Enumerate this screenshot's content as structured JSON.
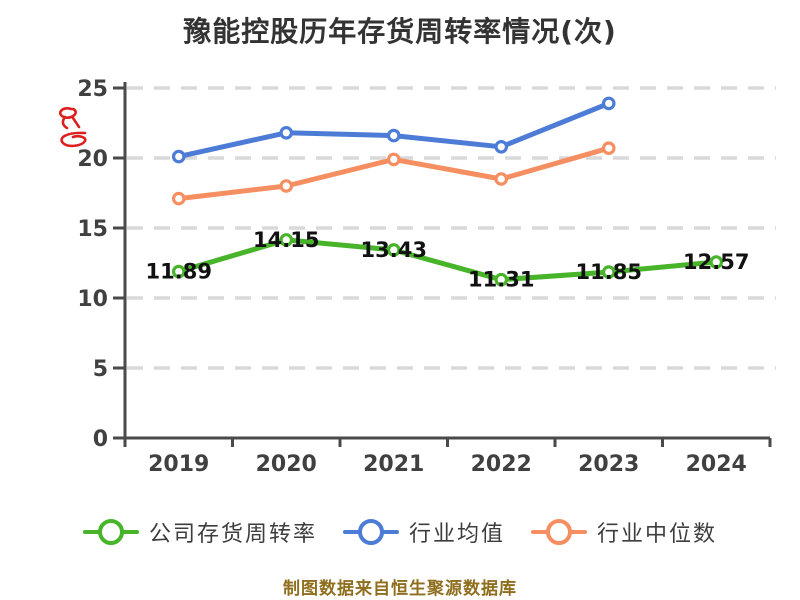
{
  "header": {
    "title": "豫能控股历年存货周转率情况(次)"
  },
  "chart_data": {
    "type": "line",
    "title": "豫能控股历年存货周转率情况(次)",
    "categories": [
      "2019",
      "2020",
      "2021",
      "2022",
      "2023",
      "2024"
    ],
    "series": [
      {
        "id": "company",
        "name": "公司存货周转率",
        "color": "#47b42a",
        "values": [
          11.89,
          14.15,
          13.43,
          11.31,
          11.85,
          12.57
        ],
        "show_labels": true
      },
      {
        "id": "industry-avg",
        "name": "行业均值",
        "color": "#4d7cd6",
        "values": [
          20.1,
          21.8,
          21.6,
          20.8,
          23.9
        ],
        "show_labels": false
      },
      {
        "id": "industry-median",
        "name": "行业中位数",
        "color": "#f58f61",
        "values": [
          17.1,
          18.0,
          19.9,
          18.5,
          20.7
        ],
        "show_labels": false
      }
    ],
    "ylim": [
      0,
      25
    ],
    "yticks": [
      0,
      5,
      10,
      15,
      20,
      25
    ],
    "grid": "dashed-horizontal",
    "legend_position": "bottom",
    "marker": "open-circle"
  },
  "footer": {
    "source_note": "制图数据来自恒生聚源数据库",
    "color": "#8f6e1e"
  },
  "watermark": {
    "color": "#dd1f1f"
  },
  "colors": {
    "axis": "#4a4a4a",
    "grid": "#d9d9d9",
    "tick_label": "#404040",
    "data_label": "#111111",
    "title": "#333333",
    "background": "#ffffff"
  }
}
